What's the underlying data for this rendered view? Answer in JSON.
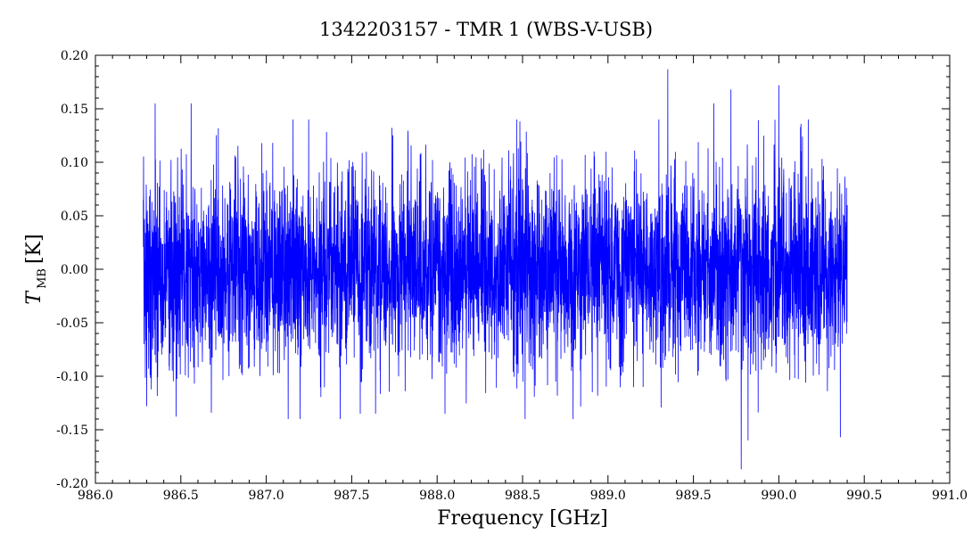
{
  "chart_data": {
    "type": "line",
    "title": "1342203157 - TMR 1 (WBS-V-USB)",
    "xlabel": "Frequency [GHz]",
    "ylabel_main": "T",
    "ylabel_sub": "MB",
    "ylabel_unit": "[K]",
    "xlim": [
      986.0,
      991.0
    ],
    "ylim": [
      -0.2,
      0.2
    ],
    "x_ticks": [
      "986.0",
      "986.5",
      "987.0",
      "987.5",
      "988.0",
      "988.5",
      "989.0",
      "989.5",
      "990.0",
      "990.5",
      "991.0"
    ],
    "y_ticks": [
      "0.20",
      "0.15",
      "0.10",
      "0.05",
      "0.00",
      "-0.05",
      "-0.10",
      "-0.15",
      "-0.20"
    ],
    "grid": false,
    "series": [
      {
        "color": "#0000ff",
        "x_start": 986.28,
        "x_end": 990.4,
        "noise_rms": 0.045,
        "extremes": [
          {
            "x": 986.28,
            "y": 0.065
          },
          {
            "x": 986.3,
            "y": -0.128
          },
          {
            "x": 986.35,
            "y": 0.155
          },
          {
            "x": 986.56,
            "y": 0.155
          },
          {
            "x": 987.55,
            "y": -0.135
          },
          {
            "x": 987.64,
            "y": -0.135
          },
          {
            "x": 989.35,
            "y": 0.187
          },
          {
            "x": 989.62,
            "y": 0.155
          },
          {
            "x": 989.72,
            "y": 0.168
          },
          {
            "x": 989.78,
            "y": -0.187
          },
          {
            "x": 989.82,
            "y": -0.16
          },
          {
            "x": 990.0,
            "y": 0.172
          },
          {
            "x": 990.36,
            "y": -0.157
          },
          {
            "x": 990.4,
            "y": 0.06
          }
        ]
      }
    ]
  }
}
